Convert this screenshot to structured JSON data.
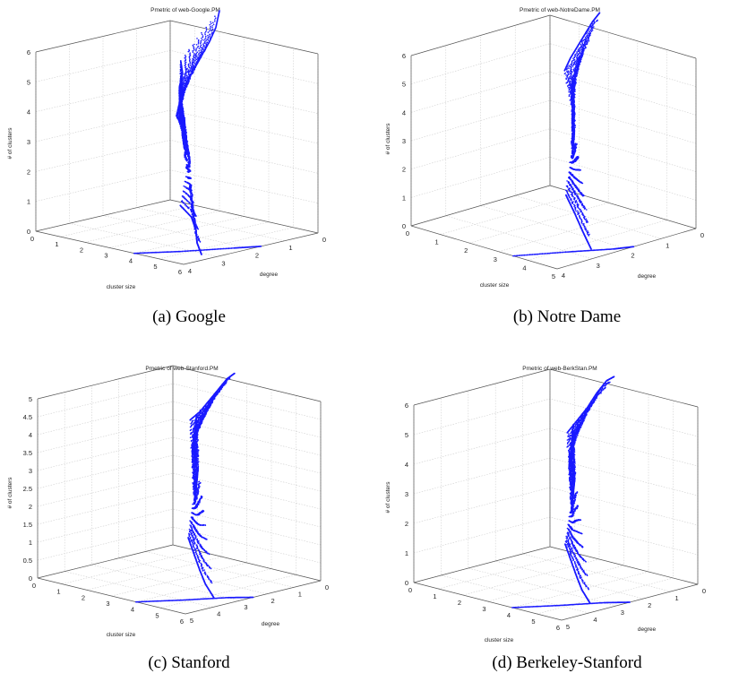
{
  "figure": {
    "panels": [
      {
        "caption": "(a) Google",
        "chart_data": {
          "type": "scatter",
          "title": "Pmetric of web-Google.PM",
          "xlabel": "cluster size",
          "ylabel": "degree",
          "zlabel": "# of clusters",
          "x_ticks": [
            "0",
            "1",
            "2",
            "3",
            "4",
            "5",
            "6"
          ],
          "y_ticks": [
            "4",
            "3",
            "2",
            "1",
            "0"
          ],
          "z_ticks": [
            "0",
            "1",
            "2",
            "3",
            "4",
            "5",
            "6"
          ],
          "xlim": [
            0,
            6
          ],
          "ylim": [
            0,
            4
          ],
          "zlim": [
            0,
            6
          ],
          "grid": true,
          "color": "#1a1aff",
          "series": [
            {
              "x": [
                0.25,
                0.45,
                0.7,
                1.0,
                1.3,
                1.6,
                1.85,
                2.0
              ],
              "y": [
                0,
                0,
                0,
                0,
                0,
                0,
                0,
                0
              ],
              "z": [
                2.85,
                3.6,
                4.1,
                4.6,
                5.1,
                5.6,
                6.1,
                6.7
              ]
            },
            {
              "x": [
                0.4,
                0.8,
                1.2,
                1.6,
                2.0,
                2.2
              ],
              "y": [
                0,
                0.3,
                0.6,
                0.9,
                1.1,
                1.3
              ],
              "z": [
                2.6,
                3.2,
                3.8,
                4.3,
                4.9,
                5.4
              ]
            },
            {
              "x": [
                0.6,
                1.0,
                1.4,
                1.8,
                2.2
              ],
              "y": [
                0,
                0.3,
                0.6,
                1.0,
                1.3
              ],
              "z": [
                2.2,
                2.6,
                3.1,
                3.6,
                4.2
              ]
            },
            {
              "x": [
                0.8,
                1.3,
                1.8,
                2.3
              ],
              "y": [
                0,
                0.4,
                0.9,
                1.3
              ],
              "z": [
                1.4,
                1.8,
                2.3,
                2.8
              ]
            },
            {
              "x": [
                1.5,
                2.5,
                3.5,
                4.5,
                5.5
              ],
              "y": [
                0.8,
                1.2,
                1.8,
                2.5,
                3.1
              ],
              "z": [
                0.3,
                0.2,
                0.1,
                0.05,
                0.0
              ]
            },
            {
              "x": [
                4.0,
                4.8,
                5.6,
                6.0
              ],
              "y": [
                4.0,
                3.2,
                2.2,
                1.7
              ],
              "z": [
                0,
                0,
                0,
                0
              ]
            }
          ]
        }
      },
      {
        "caption": "(b) Notre Dame",
        "chart_data": {
          "type": "scatter",
          "title": "Pmetric of web-NotreDame.PM",
          "xlabel": "cluster size",
          "ylabel": "degree",
          "zlabel": "# of clusters",
          "x_ticks": [
            "0",
            "1",
            "2",
            "3",
            "4",
            "5"
          ],
          "y_ticks": [
            "4",
            "3",
            "2",
            "1",
            "0"
          ],
          "z_ticks": [
            "0",
            "1",
            "2",
            "3",
            "4",
            "5",
            "6"
          ],
          "xlim": [
            0,
            5
          ],
          "ylim": [
            0,
            4
          ],
          "zlim": [
            0,
            6
          ],
          "grid": true,
          "color": "#1a1aff",
          "series": [
            {
              "x": [
                0.5,
                0.7,
                0.95,
                1.2,
                1.45,
                1.7
              ],
              "y": [
                0,
                0,
                0,
                0,
                0,
                0
              ],
              "z": [
                4.2,
                4.7,
                5.2,
                5.7,
                6.2,
                6.6
              ]
            },
            {
              "x": [
                0.9,
                1.3,
                1.7,
                2.1
              ],
              "y": [
                0.1,
                0.4,
                0.8,
                1.1
              ],
              "z": [
                3.0,
                3.5,
                4.2,
                4.9
              ]
            },
            {
              "x": [
                1.0,
                1.5,
                2.0,
                2.5
              ],
              "y": [
                0.2,
                0.6,
                1.0,
                1.4
              ],
              "z": [
                1.5,
                2.0,
                2.6,
                3.2
              ]
            },
            {
              "x": [
                1.5,
                2.5,
                3.5,
                4.5
              ],
              "y": [
                0.8,
                1.4,
                2.0,
                2.6
              ],
              "z": [
                0.4,
                0.3,
                0.15,
                0.05
              ]
            },
            {
              "x": [
                3.5,
                4.2,
                4.8,
                5.0
              ],
              "y": [
                4.0,
                3.0,
                2.2,
                1.8
              ],
              "z": [
                0,
                0,
                0,
                0
              ]
            }
          ]
        }
      },
      {
        "caption": "(c) Stanford",
        "chart_data": {
          "type": "scatter",
          "title": "Pmetric of web-Stanford.PM",
          "xlabel": "cluster size",
          "ylabel": "degree",
          "zlabel": "# of clusters",
          "x_ticks": [
            "0",
            "1",
            "2",
            "3",
            "4",
            "5",
            "6"
          ],
          "y_ticks": [
            "5",
            "4",
            "3",
            "2",
            "1",
            "0"
          ],
          "z_ticks": [
            "0",
            "0.5",
            "1",
            "1.5",
            "2",
            "2.5",
            "3",
            "3.5",
            "4",
            "4.5",
            "5"
          ],
          "xlim": [
            0,
            6
          ],
          "ylim": [
            0,
            5
          ],
          "zlim": [
            0,
            5
          ],
          "grid": true,
          "color": "#1a1aff",
          "series": [
            {
              "x": [
                0.7,
                1.1,
                1.5,
                1.9,
                2.2,
                2.5
              ],
              "y": [
                0,
                0,
                0,
                0,
                0,
                0
              ],
              "z": [
                3.6,
                3.9,
                4.3,
                4.7,
                5.0,
                5.2
              ]
            },
            {
              "x": [
                1.0,
                1.5,
                2.0,
                2.5
              ],
              "y": [
                0.2,
                0.6,
                1.0,
                1.4
              ],
              "z": [
                2.8,
                3.2,
                3.7,
                4.3
              ]
            },
            {
              "x": [
                1.2,
                1.8,
                2.4,
                3.0
              ],
              "y": [
                0.3,
                0.8,
                1.3,
                1.8
              ],
              "z": [
                1.5,
                1.9,
                2.4,
                3.0
              ]
            },
            {
              "x": [
                1.5,
                2.5,
                3.5,
                4.5,
                5.5
              ],
              "y": [
                0.8,
                1.5,
                2.2,
                2.9,
                3.5
              ],
              "z": [
                0.6,
                0.45,
                0.3,
                0.2,
                0.1
              ]
            },
            {
              "x": [
                4.0,
                4.8,
                5.5,
                6.0
              ],
              "y": [
                5.0,
                4.0,
                3.0,
                2.5
              ],
              "z": [
                0,
                0,
                0,
                0
              ]
            }
          ]
        }
      },
      {
        "caption": "(d) Berkeley-Stanford",
        "chart_data": {
          "type": "scatter",
          "title": "Pmetric of web-BerkStan.PM",
          "xlabel": "cluster size",
          "ylabel": "degree",
          "zlabel": "# of clusters",
          "x_ticks": [
            "0",
            "1",
            "2",
            "3",
            "4",
            "5",
            "6"
          ],
          "y_ticks": [
            "5",
            "4",
            "3",
            "2",
            "1",
            "0"
          ],
          "z_ticks": [
            "0",
            "1",
            "2",
            "3",
            "4",
            "5",
            "6"
          ],
          "xlim": [
            0,
            6
          ],
          "ylim": [
            0,
            5
          ],
          "zlim": [
            0,
            6
          ],
          "grid": true,
          "color": "#1a1aff",
          "series": [
            {
              "x": [
                0.7,
                1.1,
                1.5,
                1.9,
                2.3,
                2.6
              ],
              "y": [
                0,
                0,
                0,
                0,
                0,
                0
              ],
              "z": [
                4.0,
                4.5,
                5.0,
                5.6,
                6.1,
                6.3
              ]
            },
            {
              "x": [
                1.0,
                1.5,
                2.0,
                2.5
              ],
              "y": [
                0.2,
                0.6,
                1.0,
                1.4
              ],
              "z": [
                3.0,
                3.6,
                4.3,
                5.0
              ]
            },
            {
              "x": [
                1.2,
                1.8,
                2.4,
                3.0
              ],
              "y": [
                0.3,
                0.8,
                1.3,
                1.8
              ],
              "z": [
                1.6,
                2.1,
                2.8,
                3.4
              ]
            },
            {
              "x": [
                1.5,
                2.5,
                3.5,
                4.5,
                5.5
              ],
              "y": [
                0.8,
                1.5,
                2.2,
                2.9,
                3.5
              ],
              "z": [
                0.6,
                0.45,
                0.3,
                0.2,
                0.1
              ]
            },
            {
              "x": [
                4.0,
                4.8,
                5.5,
                6.0
              ],
              "y": [
                5.0,
                4.0,
                3.0,
                2.5
              ],
              "z": [
                0,
                0,
                0,
                0
              ]
            }
          ]
        }
      }
    ]
  }
}
